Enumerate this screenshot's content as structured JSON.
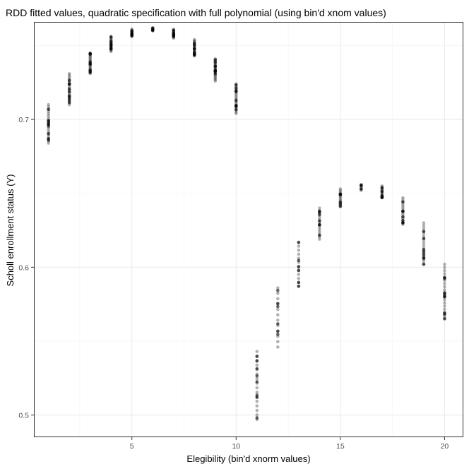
{
  "chart_data": {
    "type": "scatter",
    "title": "RDD fitted values, quadratic specification with full polynomial (using bin'd xnom values)",
    "xlabel": "Elegibility (bin'd xnorm values)",
    "ylabel": "Scholl enrollment status (Y)",
    "xlim": [
      0.3,
      20.9
    ],
    "ylim": [
      0.485,
      0.766
    ],
    "x_ticks": [
      5,
      10,
      15,
      20
    ],
    "x_tick_labels": [
      "5",
      "10",
      "15",
      "20"
    ],
    "y_ticks": [
      0.5,
      0.6,
      0.7
    ],
    "y_tick_labels": [
      "0.5",
      "0.6",
      "0.7"
    ],
    "grid": true,
    "point_color": "#000000",
    "point_opacity": 0.3,
    "series": [
      {
        "values": [
          {
            "x": 1,
            "y_min": 0.684,
            "y_max": 0.71,
            "n": 18
          },
          {
            "x": 2,
            "y_min": 0.71,
            "y_max": 0.731,
            "n": 18
          },
          {
            "x": 3,
            "y_min": 0.731,
            "y_max": 0.745,
            "n": 18
          },
          {
            "x": 4,
            "y_min": 0.746,
            "y_max": 0.756,
            "n": 16
          },
          {
            "x": 5,
            "y_min": 0.756,
            "y_max": 0.761,
            "n": 12
          },
          {
            "x": 6,
            "y_min": 0.76,
            "y_max": 0.762,
            "n": 6
          },
          {
            "x": 7,
            "y_min": 0.755,
            "y_max": 0.761,
            "n": 12
          },
          {
            "x": 8,
            "y_min": 0.743,
            "y_max": 0.754,
            "n": 16
          },
          {
            "x": 9,
            "y_min": 0.726,
            "y_max": 0.741,
            "n": 18
          },
          {
            "x": 10,
            "y_min": 0.704,
            "y_max": 0.724,
            "n": 18
          },
          {
            "x": 11,
            "y_min": 0.497,
            "y_max": 0.543,
            "n": 16
          },
          {
            "x": 12,
            "y_min": 0.546,
            "y_max": 0.586,
            "n": 12
          },
          {
            "x": 13,
            "y_min": 0.587,
            "y_max": 0.617,
            "n": 12
          },
          {
            "x": 14,
            "y_min": 0.619,
            "y_max": 0.64,
            "n": 14
          },
          {
            "x": 15,
            "y_min": 0.641,
            "y_max": 0.653,
            "n": 12
          },
          {
            "x": 16,
            "y_min": 0.652,
            "y_max": 0.656,
            "n": 6
          },
          {
            "x": 17,
            "y_min": 0.647,
            "y_max": 0.655,
            "n": 12
          },
          {
            "x": 18,
            "y_min": 0.629,
            "y_max": 0.647,
            "n": 14
          },
          {
            "x": 19,
            "y_min": 0.602,
            "y_max": 0.63,
            "n": 16
          },
          {
            "x": 20,
            "y_min": 0.565,
            "y_max": 0.602,
            "n": 18
          }
        ]
      }
    ]
  }
}
